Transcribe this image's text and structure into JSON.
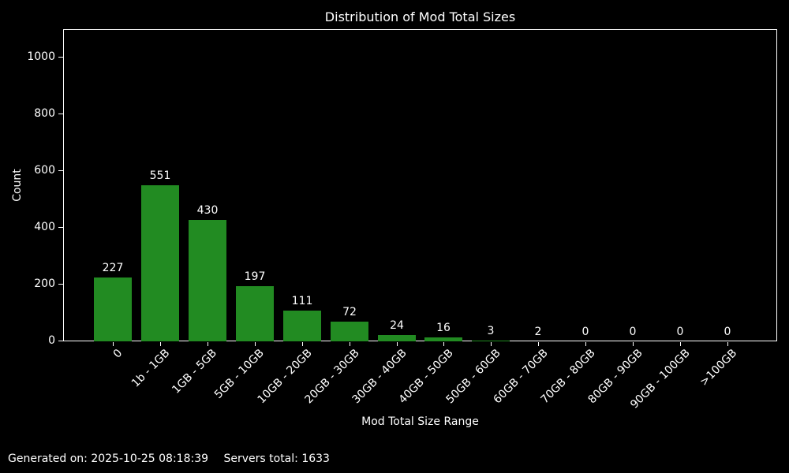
{
  "chart_data": {
    "type": "bar",
    "title": "Distribution of Mod Total Sizes",
    "xlabel": "Mod Total Size Range",
    "ylabel": "Count",
    "categories": [
      "0",
      "1b - 1GB",
      "1GB - 5GB",
      "5GB - 10GB",
      "10GB - 20GB",
      "20GB - 30GB",
      "30GB - 40GB",
      "40GB - 50GB",
      "50GB - 60GB",
      "60GB - 70GB",
      "70GB - 80GB",
      "80GB - 90GB",
      "90GB - 100GB",
      ">100GB"
    ],
    "values": [
      227,
      551,
      430,
      197,
      111,
      72,
      24,
      16,
      3,
      2,
      0,
      0,
      0,
      0
    ],
    "bar_labels_shown": true,
    "yticks": [
      0,
      200,
      400,
      600,
      800,
      1000
    ],
    "ylim": [
      0,
      1100
    ],
    "grid": false,
    "legend_position": "none",
    "xtick_rotation": 45,
    "colors": {
      "bar": "#228B22",
      "background": "#000000",
      "text": "#ffffff",
      "axis": "#ffffff"
    }
  },
  "footer": {
    "generated": "Generated on: 2025-10-25 08:18:39",
    "servers_total": "Servers total: 1633"
  }
}
